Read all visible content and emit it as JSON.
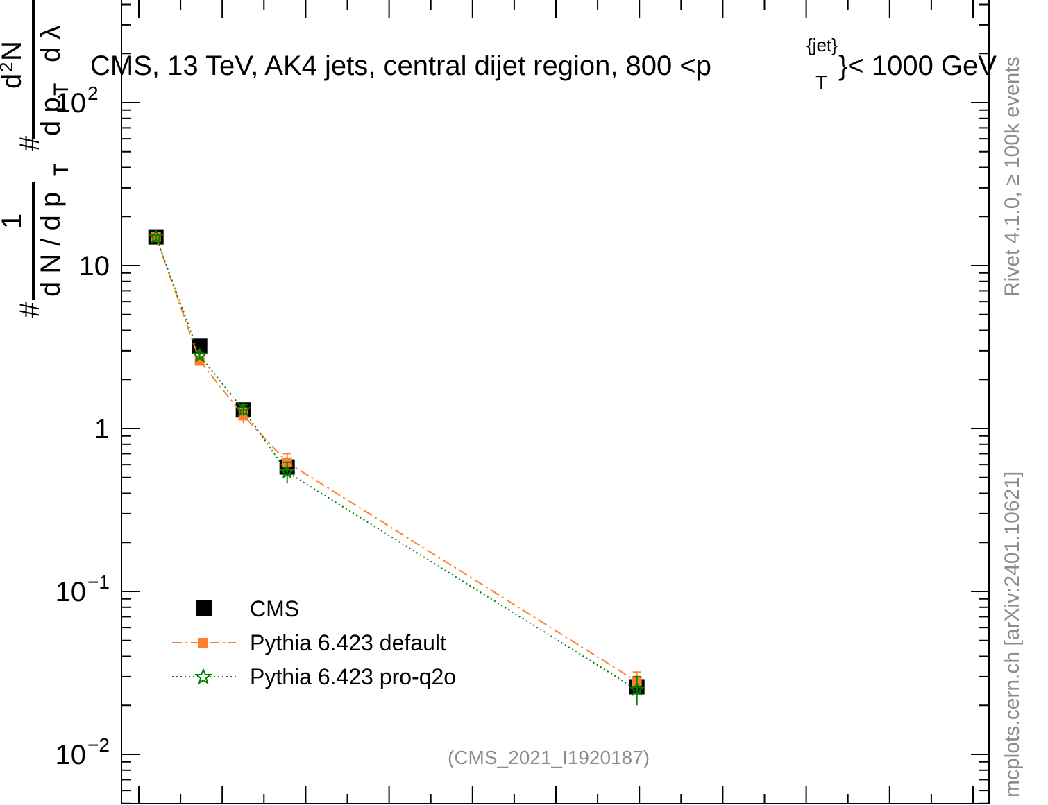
{
  "title": "CMS, 13 TeV, AK4 jets, central dijet region, 800 <p",
  "title_sup": "{jet}",
  "title_sub": "T",
  "title_end": "}< 1000 GeV",
  "side_top": "Rivet 4.1.0, ≥ 100k events",
  "side_bottom": "mcplots.cern.ch [arXiv:2401.10621]",
  "analysis": "(CMS_2021_I1920187)",
  "ylabel": {
    "hash1": "#",
    "one": "1",
    "dN": "d N / d p",
    "T1": "T",
    "hash2": "#",
    "d2N": "d",
    "sup2": "2",
    "N": "N",
    "dpT": "d p",
    "T2": "T",
    "dlambda": "d λ"
  },
  "chart_data": {
    "type": "scatter",
    "title": "CMS, 13 TeV, AK4 jets, central dijet region, 800 <p_T^{jet}< 1000 GeV",
    "xlabel": "",
    "ylabel": "1/(dN/dp_T) d²N/(dp_T dλ)",
    "xlim": [
      0,
      1
    ],
    "ylim": [
      0.0055,
      450
    ],
    "yscale": "log",
    "yticks": [
      {
        "value": 100,
        "label": "10",
        "exp": "2"
      },
      {
        "value": 10,
        "label": "10",
        "exp": ""
      },
      {
        "value": 1,
        "label": "1",
        "exp": ""
      },
      {
        "value": 0.1,
        "label": "10",
        "exp": "−1"
      },
      {
        "value": 0.01,
        "label": "10",
        "exp": "−2"
      }
    ],
    "legend_position": "bottom-left",
    "series": [
      {
        "name": "CMS",
        "color": "#000000",
        "marker": "square",
        "line": "none",
        "x": [
          0.045,
          0.095,
          0.145,
          0.195,
          0.595
        ],
        "y": [
          15.0,
          3.2,
          1.3,
          0.58,
          0.026
        ],
        "yerr": [
          0,
          0,
          0,
          0,
          0
        ]
      },
      {
        "name": "Pythia 6.423 default",
        "color": "#ff7f2a",
        "marker": "square",
        "line": "dashdot",
        "x": [
          0.045,
          0.095,
          0.145,
          0.195,
          0.595
        ],
        "y": [
          15.0,
          2.6,
          1.2,
          0.62,
          0.028
        ],
        "yerr": [
          0.3,
          0.15,
          0.12,
          0.08,
          0.004
        ]
      },
      {
        "name": "Pythia 6.423 pro-q2o",
        "color": "#008000",
        "marker": "star",
        "line": "dotted",
        "x": [
          0.045,
          0.095,
          0.145,
          0.195,
          0.595
        ],
        "y": [
          15.0,
          2.8,
          1.3,
          0.54,
          0.025
        ],
        "yerr": [
          0.3,
          0.15,
          0.1,
          0.08,
          0.005
        ]
      }
    ]
  }
}
